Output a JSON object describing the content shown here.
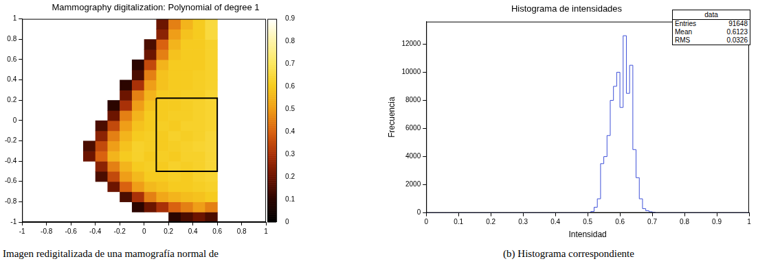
{
  "chart_data": [
    {
      "type": "heatmap",
      "title": "Mammography digitalization: Polynomial of degree 1",
      "xlim": [
        -1,
        1
      ],
      "ylim": [
        -1,
        1
      ],
      "xticks": [
        -1,
        -0.8,
        -0.6,
        -0.4,
        -0.2,
        0,
        0.2,
        0.4,
        0.6,
        0.8,
        1
      ],
      "yticks": [
        -1,
        -0.8,
        -0.6,
        -0.4,
        -0.2,
        0,
        0.2,
        0.4,
        0.6,
        0.8,
        1
      ],
      "grid": false,
      "xbins": [
        -1,
        -0.9,
        -0.8,
        -0.7,
        -0.6,
        -0.5,
        -0.4,
        -0.3,
        -0.2,
        -0.1,
        0,
        0.1,
        0.2,
        0.3,
        0.4,
        0.5,
        0.6,
        0.7,
        0.8,
        0.9,
        1
      ],
      "ybins": [
        -1,
        -0.9,
        -0.8,
        -0.7,
        -0.6,
        -0.5,
        -0.4,
        -0.3,
        -0.2,
        -0.1,
        0,
        0.1,
        0.2,
        0.3,
        0.4,
        0.5,
        0.6,
        0.7,
        0.8,
        0.9,
        1
      ],
      "cells": [
        [
          null,
          null,
          null,
          null,
          null,
          null,
          null,
          null,
          null,
          null,
          null,
          null,
          0.1,
          0.15,
          0.2,
          0.15,
          null,
          null,
          null,
          null
        ],
        [
          null,
          null,
          null,
          null,
          null,
          null,
          null,
          null,
          null,
          0.1,
          0.2,
          0.3,
          0.4,
          0.45,
          0.5,
          0.45,
          null,
          null,
          null,
          null
        ],
        [
          null,
          null,
          null,
          null,
          null,
          null,
          null,
          null,
          0.15,
          0.3,
          0.45,
          0.52,
          0.55,
          0.57,
          0.58,
          0.6,
          null,
          null,
          null,
          null
        ],
        [
          null,
          null,
          null,
          null,
          null,
          null,
          null,
          0.2,
          0.4,
          0.5,
          0.56,
          0.58,
          0.6,
          0.6,
          0.61,
          0.62,
          null,
          null,
          null,
          null
        ],
        [
          null,
          null,
          null,
          null,
          null,
          null,
          0.15,
          0.35,
          0.5,
          0.56,
          0.6,
          0.6,
          0.61,
          0.6,
          0.62,
          0.63,
          null,
          null,
          null,
          null
        ],
        [
          null,
          null,
          null,
          null,
          null,
          null,
          0.25,
          0.45,
          0.55,
          0.6,
          0.61,
          0.6,
          0.62,
          0.61,
          0.62,
          0.64,
          null,
          null,
          null,
          null
        ],
        [
          null,
          null,
          null,
          null,
          null,
          0.2,
          0.4,
          0.55,
          0.6,
          0.62,
          0.6,
          0.61,
          0.6,
          0.62,
          0.62,
          0.64,
          null,
          null,
          null,
          null
        ],
        [
          null,
          null,
          null,
          null,
          null,
          0.15,
          0.35,
          0.5,
          0.58,
          0.62,
          0.61,
          0.6,
          0.61,
          0.62,
          0.63,
          0.64,
          null,
          null,
          null,
          null
        ],
        [
          null,
          null,
          null,
          null,
          null,
          null,
          0.25,
          0.45,
          0.55,
          0.6,
          0.61,
          0.6,
          0.62,
          0.61,
          0.62,
          0.64,
          null,
          null,
          null,
          null
        ],
        [
          null,
          null,
          null,
          null,
          null,
          null,
          0.15,
          0.35,
          0.5,
          0.58,
          0.6,
          0.61,
          0.6,
          0.62,
          0.62,
          0.63,
          null,
          null,
          null,
          null
        ],
        [
          null,
          null,
          null,
          null,
          null,
          null,
          null,
          0.2,
          0.45,
          0.55,
          0.6,
          0.6,
          0.61,
          0.61,
          0.62,
          0.63,
          null,
          null,
          null,
          null
        ],
        [
          null,
          null,
          null,
          null,
          null,
          null,
          null,
          0.1,
          0.3,
          0.5,
          0.58,
          0.6,
          0.6,
          0.61,
          0.62,
          0.63,
          null,
          null,
          null,
          null
        ],
        [
          null,
          null,
          null,
          null,
          null,
          null,
          null,
          null,
          0.2,
          0.45,
          0.55,
          0.6,
          0.6,
          0.61,
          0.61,
          0.63,
          null,
          null,
          null,
          null
        ],
        [
          null,
          null,
          null,
          null,
          null,
          null,
          null,
          null,
          0.1,
          0.3,
          0.5,
          0.58,
          0.6,
          0.6,
          0.61,
          0.62,
          null,
          null,
          null,
          null
        ],
        [
          null,
          null,
          null,
          null,
          null,
          null,
          null,
          null,
          null,
          0.15,
          0.45,
          0.58,
          0.6,
          0.6,
          0.61,
          0.62,
          null,
          null,
          null,
          null
        ],
        [
          null,
          null,
          null,
          null,
          null,
          null,
          null,
          null,
          null,
          0.1,
          0.35,
          0.55,
          0.6,
          0.6,
          0.6,
          0.62,
          null,
          null,
          null,
          null
        ],
        [
          null,
          null,
          null,
          null,
          null,
          null,
          null,
          null,
          null,
          null,
          0.2,
          0.45,
          0.58,
          0.6,
          0.6,
          0.62,
          null,
          null,
          null,
          null
        ],
        [
          null,
          null,
          null,
          null,
          null,
          null,
          null,
          null,
          null,
          null,
          0.15,
          0.4,
          0.55,
          0.6,
          0.6,
          0.62,
          null,
          null,
          null,
          null
        ],
        [
          null,
          null,
          null,
          null,
          null,
          null,
          null,
          null,
          null,
          null,
          null,
          0.25,
          0.5,
          0.58,
          0.6,
          0.65,
          null,
          null,
          null,
          null
        ],
        [
          null,
          null,
          null,
          null,
          null,
          null,
          null,
          null,
          null,
          null,
          null,
          0.2,
          0.45,
          0.55,
          0.6,
          0.65,
          null,
          null,
          null,
          null
        ]
      ],
      "colorbar": {
        "range": [
          0,
          0.9
        ],
        "ticks": [
          0,
          0.1,
          0.2,
          0.3,
          0.4,
          0.5,
          0.6,
          0.7,
          0.8,
          0.9
        ]
      },
      "roi": {
        "x": [
          0.1,
          0.6,
          0.6,
          0.1,
          0.1
        ],
        "y": [
          0.22,
          0.22,
          -0.5,
          -0.5,
          0.22
        ]
      },
      "caption": "Imagen redigitalizada de una mamografía normal de"
    },
    {
      "type": "histogram",
      "title": "Histograma de intensidades",
      "x_label": "Intensidad",
      "y_label": "Frecuencia",
      "color": "#3f51d8",
      "bins": [
        0,
        0.01,
        0.02,
        0.03,
        0.04,
        0.05,
        0.06,
        0.07,
        0.08,
        0.09,
        0.1,
        0.11,
        0.12,
        0.13,
        0.14,
        0.15,
        0.16,
        0.17,
        0.18,
        0.19,
        0.2,
        0.21,
        0.22,
        0.23,
        0.24,
        0.25,
        0.26,
        0.27,
        0.28,
        0.29,
        0.3,
        0.31,
        0.32,
        0.33,
        0.34,
        0.35,
        0.36,
        0.37,
        0.38,
        0.39,
        0.4,
        0.41,
        0.42,
        0.43,
        0.44,
        0.45,
        0.46,
        0.47,
        0.48,
        0.49,
        0.5,
        0.51,
        0.52,
        0.53,
        0.54,
        0.55,
        0.56,
        0.57,
        0.58,
        0.59,
        0.6,
        0.61,
        0.62,
        0.63,
        0.64,
        0.65,
        0.66,
        0.67,
        0.68,
        0.69,
        0.7,
        0.71,
        0.72,
        0.73,
        0.74,
        0.75,
        0.76,
        0.77,
        0.78,
        0.79,
        0.8,
        0.81,
        0.82,
        0.83,
        0.84,
        0.85,
        0.86,
        0.87,
        0.88,
        0.89,
        0.9,
        0.91,
        0.92,
        0.93,
        0.94,
        0.95,
        0.96,
        0.97,
        0.98,
        0.99,
        1
      ],
      "values": [
        0,
        0,
        0,
        0,
        0,
        0,
        0,
        0,
        0,
        0,
        0,
        0,
        0,
        0,
        0,
        0,
        0,
        0,
        0,
        0,
        0,
        0,
        0,
        0,
        0,
        0,
        0,
        0,
        0,
        0,
        0,
        0,
        0,
        0,
        0,
        0,
        0,
        0,
        0,
        0,
        0,
        0,
        0,
        0,
        0,
        0,
        0,
        0,
        0,
        0,
        0,
        0,
        100,
        400,
        1000,
        3500,
        4000,
        5500,
        8000,
        9000,
        10000,
        7500,
        12600,
        8500,
        10500,
        4500,
        2500,
        1000,
        300,
        150,
        80,
        30,
        0,
        0,
        0,
        0,
        0,
        0,
        0,
        0,
        0,
        0,
        0,
        0,
        0,
        0,
        0,
        0,
        0,
        0,
        0,
        0,
        0,
        0,
        0,
        0,
        0,
        0,
        0,
        0
      ],
      "xlim": [
        0,
        1
      ],
      "ylim": [
        0,
        13600
      ],
      "xticks": [
        0,
        0.1,
        0.2,
        0.3,
        0.4,
        0.5,
        0.6,
        0.7,
        0.8,
        0.9,
        1
      ],
      "yticks": [
        0,
        2000,
        4000,
        6000,
        8000,
        10000,
        12000
      ],
      "grid": false,
      "stats": {
        "title": "data",
        "rows": [
          {
            "label": "Entries",
            "value": 91648
          },
          {
            "label": "Mean",
            "value": 0.6123
          },
          {
            "label": "RMS",
            "value": 0.0326
          }
        ]
      },
      "caption": "(b) Histograma correspondiente"
    }
  ]
}
